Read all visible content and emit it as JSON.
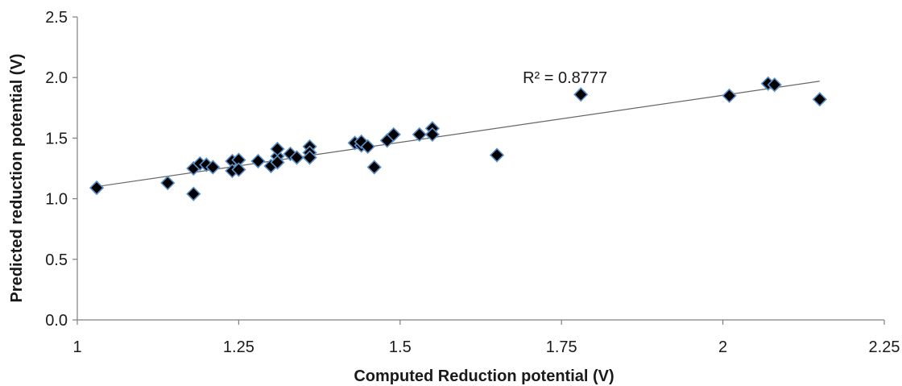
{
  "chart_data": {
    "type": "scatter",
    "xlabel": "Computed Reduction potential (V)",
    "ylabel": "Predicted reduction potential  (V)",
    "xlim": [
      1,
      2.25
    ],
    "ylim": [
      0.0,
      2.5
    ],
    "x_ticks": [
      "1",
      "1.25",
      "1.5",
      "1.75",
      "2",
      "2.25"
    ],
    "y_ticks": [
      "0.0",
      "0.5",
      "1.0",
      "1.5",
      "2.0",
      "2.5"
    ],
    "grid": false,
    "legend": "none",
    "marker": "diamond",
    "marker_color": "#000000",
    "marker_edge_color": "#5b8fc9",
    "trendline": {
      "type": "linear",
      "x": [
        1.03,
        2.15
      ],
      "y": [
        1.1,
        1.97
      ],
      "color": "#666666"
    },
    "annotation": "R² = 0.8777",
    "points": [
      {
        "x": 1.03,
        "y": 1.09
      },
      {
        "x": 1.14,
        "y": 1.13
      },
      {
        "x": 1.18,
        "y": 1.04
      },
      {
        "x": 1.18,
        "y": 1.25
      },
      {
        "x": 1.19,
        "y": 1.29
      },
      {
        "x": 1.2,
        "y": 1.28
      },
      {
        "x": 1.21,
        "y": 1.26
      },
      {
        "x": 1.24,
        "y": 1.31
      },
      {
        "x": 1.24,
        "y": 1.23
      },
      {
        "x": 1.25,
        "y": 1.32
      },
      {
        "x": 1.25,
        "y": 1.24
      },
      {
        "x": 1.28,
        "y": 1.31
      },
      {
        "x": 1.3,
        "y": 1.27
      },
      {
        "x": 1.31,
        "y": 1.35
      },
      {
        "x": 1.31,
        "y": 1.41
      },
      {
        "x": 1.31,
        "y": 1.3
      },
      {
        "x": 1.33,
        "y": 1.37
      },
      {
        "x": 1.34,
        "y": 1.34
      },
      {
        "x": 1.36,
        "y": 1.43
      },
      {
        "x": 1.36,
        "y": 1.38
      },
      {
        "x": 1.36,
        "y": 1.34
      },
      {
        "x": 1.43,
        "y": 1.46
      },
      {
        "x": 1.44,
        "y": 1.44
      },
      {
        "x": 1.44,
        "y": 1.47
      },
      {
        "x": 1.45,
        "y": 1.43
      },
      {
        "x": 1.46,
        "y": 1.26
      },
      {
        "x": 1.48,
        "y": 1.48
      },
      {
        "x": 1.49,
        "y": 1.53
      },
      {
        "x": 1.53,
        "y": 1.53
      },
      {
        "x": 1.55,
        "y": 1.58
      },
      {
        "x": 1.55,
        "y": 1.53
      },
      {
        "x": 1.65,
        "y": 1.36
      },
      {
        "x": 1.78,
        "y": 1.86
      },
      {
        "x": 2.01,
        "y": 1.85
      },
      {
        "x": 2.07,
        "y": 1.95
      },
      {
        "x": 2.08,
        "y": 1.94
      },
      {
        "x": 2.15,
        "y": 1.82
      }
    ]
  }
}
